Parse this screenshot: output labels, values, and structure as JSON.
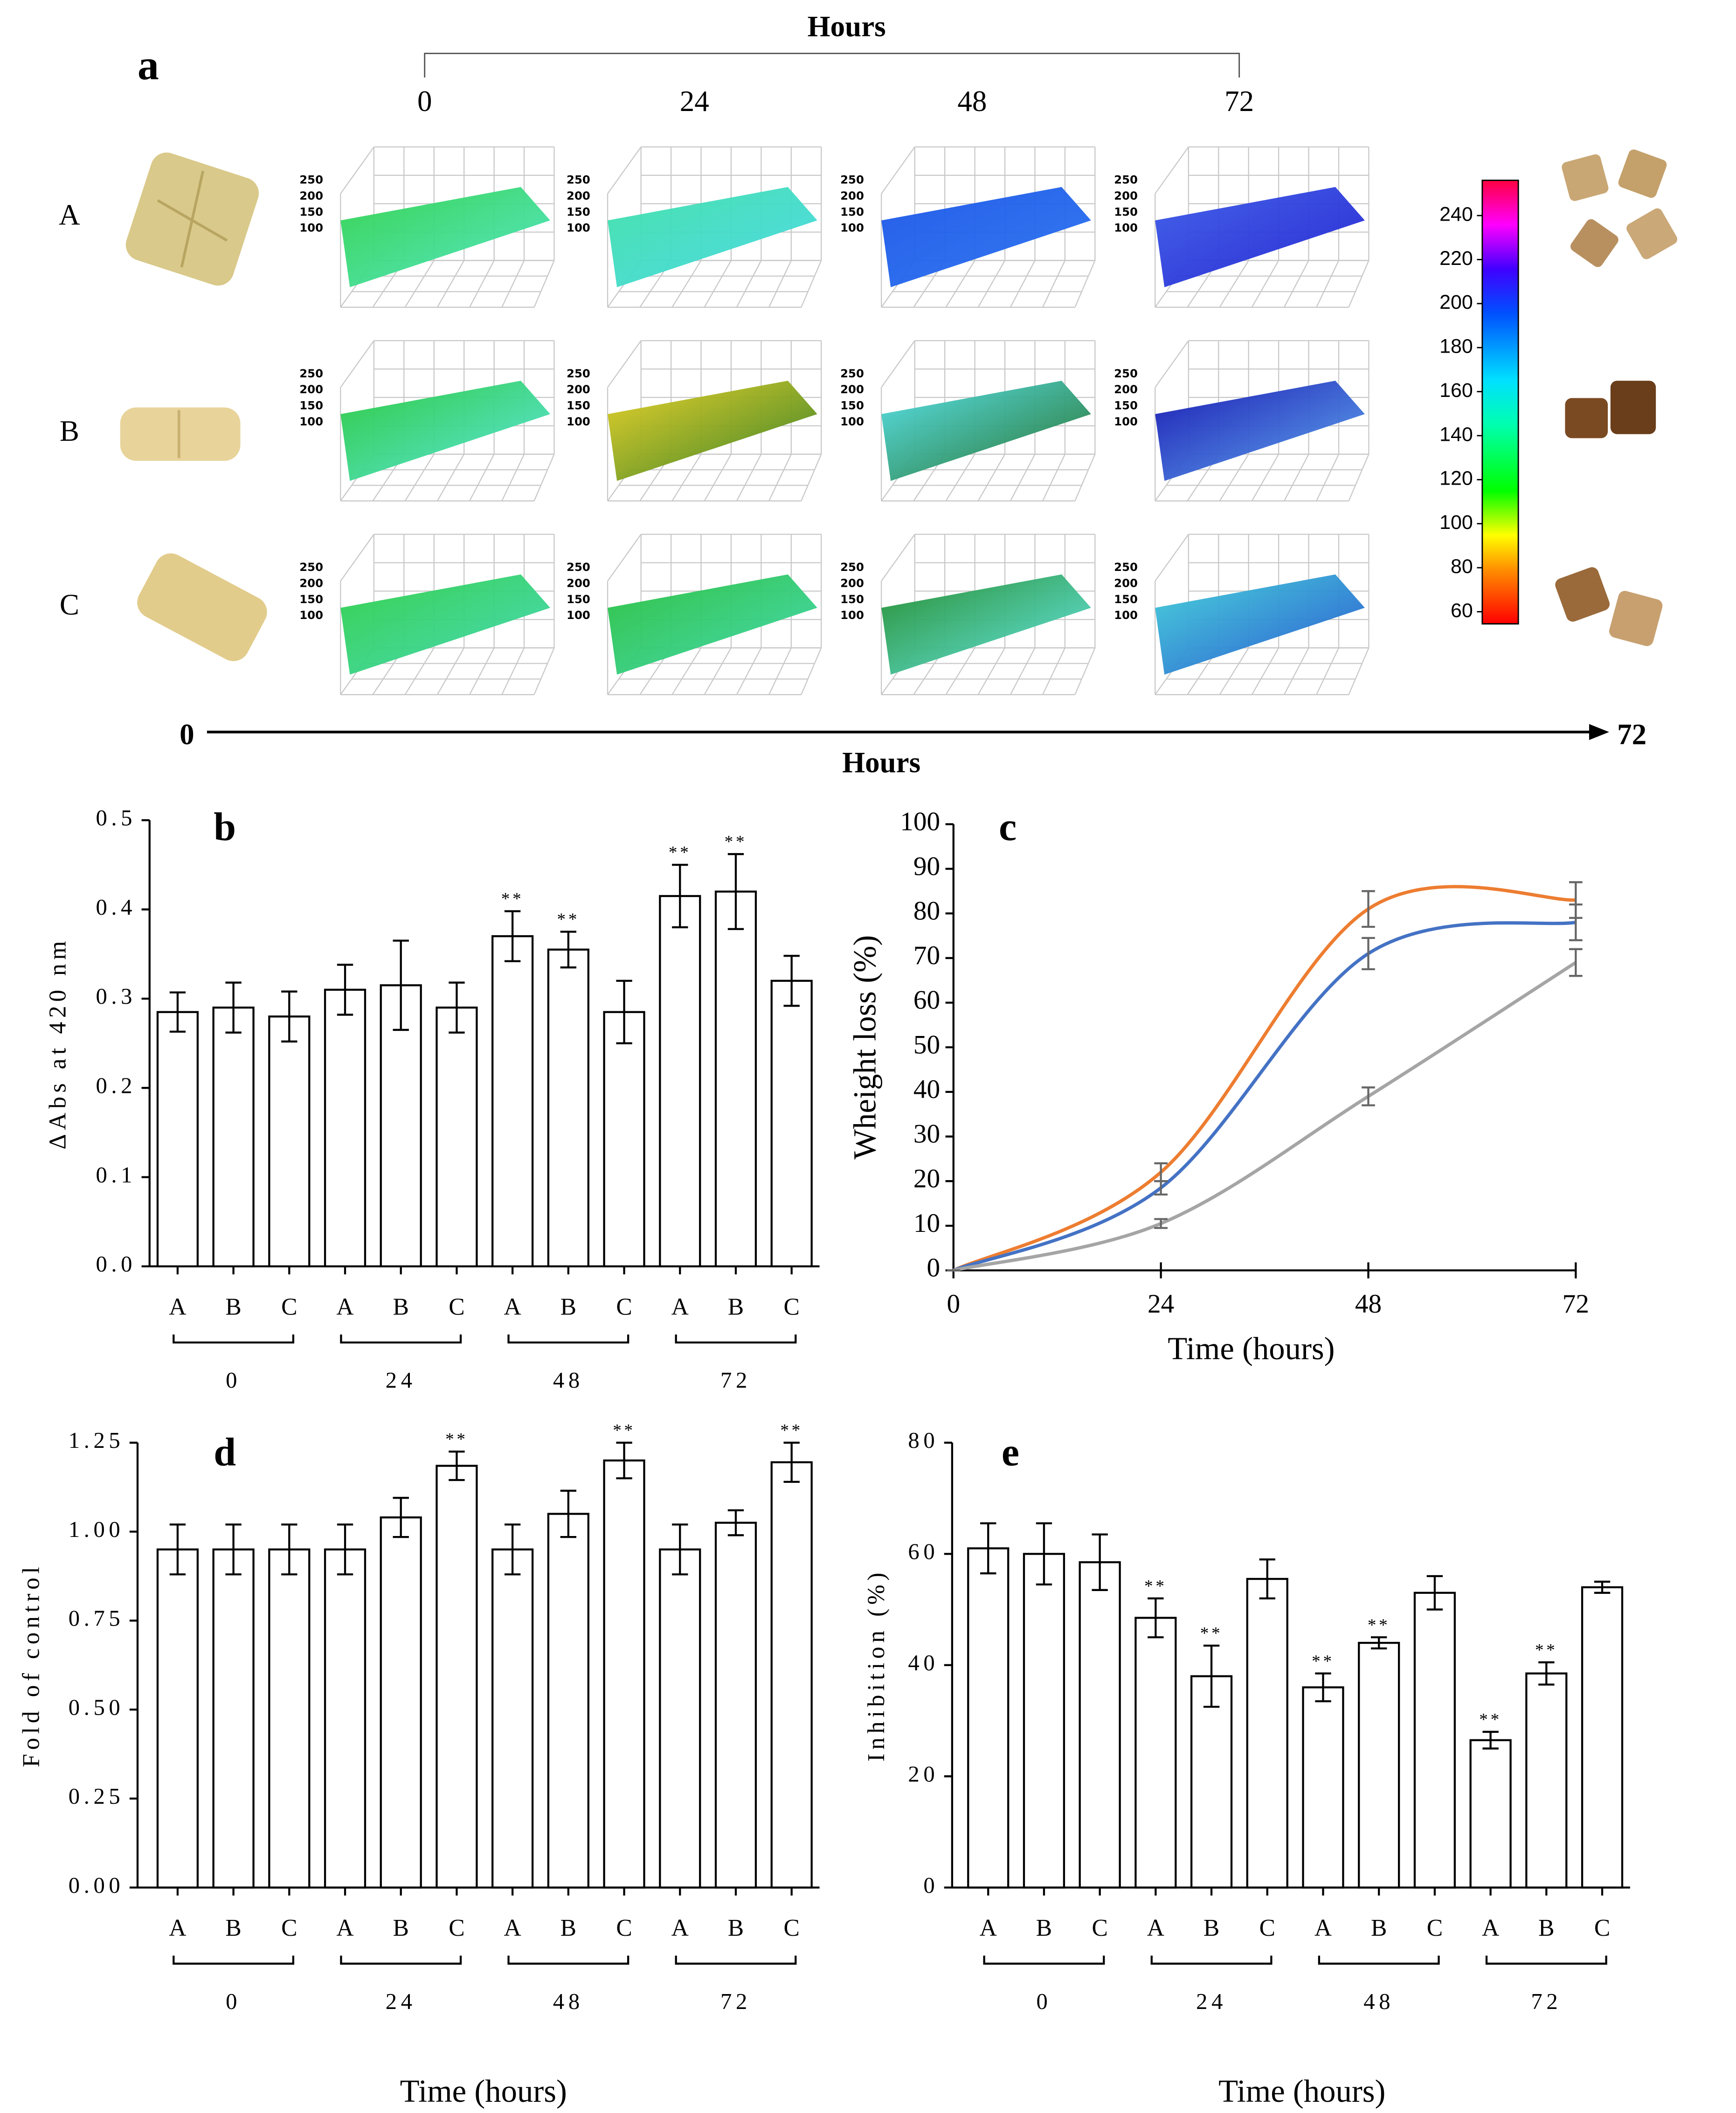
{
  "figure": {
    "panel_label": "a",
    "hours_top": {
      "title": "Hours",
      "ticks": [
        "0",
        "24",
        "48",
        "72"
      ]
    },
    "rows": [
      "A",
      "B",
      "C"
    ],
    "surface_ticks": [
      250,
      200,
      150,
      100
    ],
    "surface_colors": [
      [
        [
          "#2fd24a",
          "#4fe6c8"
        ],
        [
          "#3fe0a8",
          "#46d8e6"
        ],
        [
          "#1a55e8",
          "#2a74f0"
        ],
        [
          "#3a5ae8",
          "#2020d0"
        ]
      ],
      [
        [
          "#26c83a",
          "#55e6e0"
        ],
        [
          "#e8d020",
          "#2a7a1e"
        ],
        [
          "#50e0e8",
          "#1e6a20"
        ],
        [
          "#1010b0",
          "#5aa8f0"
        ]
      ],
      [
        [
          "#2ecf46",
          "#40d8b8"
        ],
        [
          "#28c03c",
          "#3ed8b0"
        ],
        [
          "#1e8a28",
          "#60e8e8"
        ],
        [
          "#40d0d8",
          "#2050d0"
        ]
      ]
    ],
    "colorbar": {
      "lim": [
        54.5,
        256
      ],
      "ticks": [
        60,
        80,
        100,
        120,
        140,
        160,
        180,
        200,
        220,
        240
      ]
    },
    "time_arrow": {
      "start": "0",
      "end": "72",
      "title": "Hours"
    }
  },
  "chart_data": [
    {
      "type": "bar",
      "panel_label": "b",
      "ylabel": "ΔAbs at 420 nm",
      "categories": [
        "A",
        "B",
        "C",
        "A",
        "B",
        "C",
        "A",
        "B",
        "C",
        "A",
        "B",
        "C"
      ],
      "groups": [
        "24",
        "48",
        "72"
      ],
      "group_labels": [
        "0",
        "24",
        "48",
        "72"
      ],
      "values": [
        0.285,
        0.29,
        0.28,
        0.31,
        0.315,
        0.29,
        0.37,
        0.355,
        0.285,
        0.415,
        0.42,
        0.32
      ],
      "errors": [
        0.022,
        0.028,
        0.028,
        0.028,
        0.05,
        0.028,
        0.028,
        0.02,
        0.035,
        0.035,
        0.042,
        0.028
      ],
      "significance": [
        null,
        null,
        null,
        null,
        null,
        null,
        "**",
        "**",
        null,
        "**",
        "**",
        null
      ],
      "ylim": [
        0,
        0.5
      ],
      "yticks": [
        {
          "value": 0,
          "label": "0.0"
        },
        0.1,
        0.2,
        0.3,
        0.4,
        0.5
      ]
    },
    {
      "type": "line",
      "panel_label": "c",
      "xlabel": "Time (hours)",
      "ylabel": "Wheight loss (%)",
      "x": [
        0,
        24,
        48,
        72
      ],
      "series": [
        {
          "color": "#ed7d31",
          "values": [
            0,
            22,
            81,
            83
          ],
          "errors": [
            0,
            2,
            4,
            4
          ]
        },
        {
          "color": "#4472c4",
          "values": [
            0,
            18.5,
            71,
            78
          ],
          "errors": [
            0,
            1.5,
            3.5,
            4
          ]
        },
        {
          "color": "#a5a5a5",
          "values": [
            0,
            10.5,
            39,
            69
          ],
          "errors": [
            0,
            1,
            2,
            3
          ]
        }
      ],
      "xlim": [
        0,
        72
      ],
      "xticks": [
        0,
        24,
        48,
        72
      ],
      "ylim": [
        0,
        100
      ],
      "yticks": [
        0,
        10,
        20,
        30,
        40,
        50,
        60,
        70,
        80,
        90,
        100
      ]
    },
    {
      "type": "bar",
      "panel_label": "d",
      "xlabel": "Time (hours)",
      "ylabel": "Fold of control",
      "categories": [
        "A",
        "B",
        "C",
        "A",
        "B",
        "C",
        "A",
        "B",
        "C",
        "A",
        "B",
        "C"
      ],
      "group_labels": [
        "0",
        "24",
        "48",
        "72"
      ],
      "values": [
        0.95,
        0.95,
        0.95,
        0.95,
        1.04,
        1.185,
        0.95,
        1.05,
        1.2,
        0.95,
        1.025,
        1.195
      ],
      "errors": [
        0.07,
        0.07,
        0.07,
        0.07,
        0.055,
        0.04,
        0.07,
        0.065,
        0.05,
        0.07,
        0.035,
        0.055
      ],
      "significance": [
        null,
        null,
        null,
        null,
        null,
        "**",
        null,
        null,
        "**",
        null,
        null,
        "**"
      ],
      "ylim": [
        0,
        1.25
      ],
      "yticks": [
        {
          "value": 0,
          "label": "0.00"
        },
        0.25,
        {
          "value": 0.5,
          "label": "0.50"
        },
        0.75,
        {
          "value": 1,
          "label": "1.00"
        },
        1.25
      ]
    },
    {
      "type": "bar",
      "panel_label": "e",
      "xlabel": "Time (hours)",
      "ylabel": "Inhibition (%)",
      "categories": [
        "A",
        "B",
        "C",
        "A",
        "B",
        "C",
        "A",
        "B",
        "C",
        "A",
        "B",
        "C"
      ],
      "group_labels": [
        "0",
        "24",
        "48",
        "72"
      ],
      "values": [
        61,
        60,
        58.5,
        48.5,
        38,
        55.5,
        36,
        44,
        53,
        26.5,
        38.5,
        54
      ],
      "errors": [
        4.5,
        5.5,
        5,
        3.5,
        5.5,
        3.5,
        2.5,
        1,
        3,
        1.5,
        2,
        1
      ],
      "significance": [
        null,
        null,
        null,
        "**",
        "**",
        null,
        "**",
        "**",
        null,
        "**",
        "**",
        null
      ],
      "ylim": [
        0,
        80
      ],
      "yticks": [
        0,
        20,
        40,
        60,
        80
      ]
    }
  ]
}
